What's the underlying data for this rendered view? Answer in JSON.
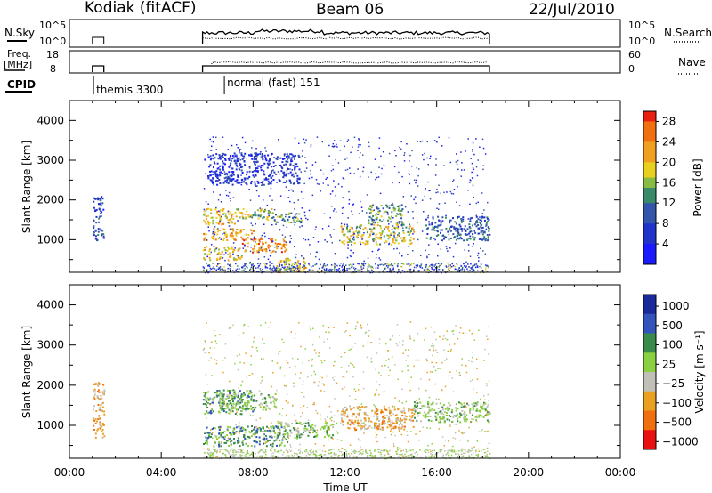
{
  "header": {
    "left": "Kodiak (fitACF)",
    "center": "Beam 06",
    "right": "22/Jul/2010"
  },
  "panels_top": {
    "nsky_label": "N.Sky",
    "nsky_ticks": [
      "10^5",
      "10^0"
    ],
    "nsearch_label": "N.Search",
    "freq_label_1": "Freq.",
    "freq_label_2": "[MHz]",
    "freq_ticks": [
      "18",
      "8"
    ],
    "nave_label": "Nave",
    "nave_ticks": [
      "60",
      "0"
    ],
    "cpid_label": "CPID",
    "cpid_entries": [
      {
        "label": "themis 3300",
        "start_hour": 1.05
      },
      {
        "label": "normal (fast) 151",
        "start_hour": 6.75
      }
    ]
  },
  "chart_data": [
    {
      "type": "heatmap",
      "name": "power-panel",
      "ylabel": "Slant Range [km]",
      "xlabel": "",
      "xlim": [
        0,
        24
      ],
      "ylim": [
        180,
        4500
      ],
      "yticks": [
        1000,
        2000,
        3000,
        4000
      ],
      "colorbar": {
        "label": "Power [dB]",
        "ticks": [
          4,
          8,
          12,
          16,
          20,
          24,
          28
        ],
        "range": [
          0,
          30
        ]
      },
      "regions": [
        {
          "t0": 5.8,
          "t1": 7.3,
          "r0": 1400,
          "r1": 1800,
          "value": 20
        },
        {
          "t0": 7.3,
          "t1": 8.8,
          "r0": 1500,
          "r1": 1800,
          "value": 16
        },
        {
          "t0": 8.8,
          "t1": 10.2,
          "r0": 1450,
          "r1": 1700,
          "value": 14
        },
        {
          "t0": 5.8,
          "t1": 8.0,
          "r0": 1000,
          "r1": 1300,
          "value": 22
        },
        {
          "t0": 7.5,
          "t1": 9.5,
          "r0": 700,
          "r1": 1050,
          "value": 24
        },
        {
          "t0": 5.8,
          "t1": 7.5,
          "r0": 500,
          "r1": 850,
          "value": 20
        },
        {
          "t0": 9.0,
          "t1": 10.3,
          "r0": 200,
          "r1": 550,
          "value": 20
        },
        {
          "t0": 11.8,
          "t1": 15.0,
          "r0": 900,
          "r1": 1400,
          "value": 18
        },
        {
          "t0": 13.0,
          "t1": 14.5,
          "r0": 1400,
          "r1": 1900,
          "value": 14
        },
        {
          "t0": 15.5,
          "t1": 18.3,
          "r0": 1000,
          "r1": 1600,
          "value": 10
        },
        {
          "t0": 6.0,
          "t1": 10.0,
          "r0": 2400,
          "r1": 3200,
          "value": 6
        },
        {
          "t0": 1.0,
          "t1": 1.5,
          "r0": 1000,
          "r1": 2100,
          "value": 8
        }
      ]
    },
    {
      "type": "heatmap",
      "name": "velocity-panel",
      "ylabel": "Slant Range [km]",
      "xlabel": "Time UT",
      "xlim": [
        0,
        24
      ],
      "ylim": [
        180,
        4500
      ],
      "yticks": [
        1000,
        2000,
        3000,
        4000
      ],
      "xtick_labels": [
        "00:00",
        "04:00",
        "08:00",
        "12:00",
        "16:00",
        "20:00",
        "00:00"
      ],
      "xticks": [
        0,
        4,
        8,
        12,
        16,
        20,
        24
      ],
      "colorbar": {
        "label": "Velocity [m s⁻¹]",
        "ticks": [
          "1000",
          "500",
          "100",
          "25",
          "−25",
          "−100",
          "−500",
          "−1000"
        ]
      },
      "regions": [
        {
          "t0": 5.8,
          "t1": 8.0,
          "r0": 1300,
          "r1": 1900,
          "value": "100"
        },
        {
          "t0": 6.5,
          "t1": 9.0,
          "r0": 1400,
          "r1": 1800,
          "value": "25"
        },
        {
          "t0": 5.8,
          "t1": 9.5,
          "r0": 500,
          "r1": 1000,
          "value": "100"
        },
        {
          "t0": 9.0,
          "t1": 11.5,
          "r0": 700,
          "r1": 1100,
          "value": "25"
        },
        {
          "t0": 11.8,
          "t1": 15.0,
          "r0": 900,
          "r1": 1500,
          "value": "-100"
        },
        {
          "t0": 15.0,
          "t1": 18.3,
          "r0": 1100,
          "r1": 1600,
          "value": "25"
        },
        {
          "t0": 1.0,
          "t1": 1.5,
          "r0": 700,
          "r1": 2100,
          "value": "-100"
        }
      ]
    }
  ]
}
